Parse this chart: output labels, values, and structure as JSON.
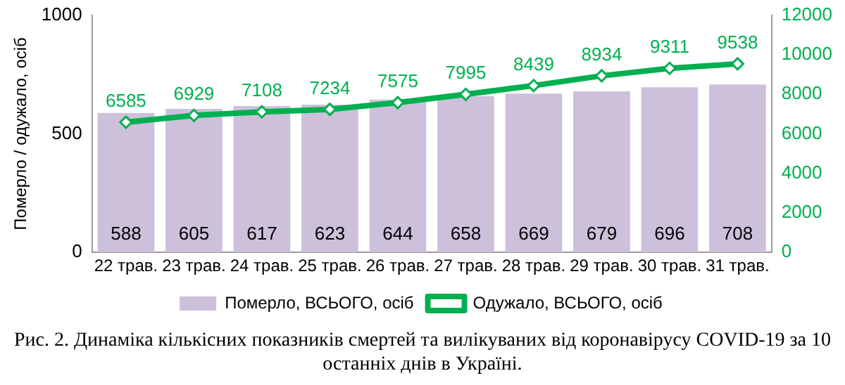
{
  "chart_data": {
    "type": "bar",
    "ylabel": "Померло / одужало, осіб",
    "categories": [
      "22 трав.",
      "23 трав.",
      "24 трав.",
      "25 трав.",
      "26 трав.",
      "27 трав.",
      "28 трав.",
      "29 трав.",
      "30 трав.",
      "31 трав."
    ],
    "series": [
      {
        "name": "Померло, ВСЬОГО, осіб",
        "color": "#ccc0da",
        "values": [
          588,
          605,
          617,
          623,
          644,
          658,
          669,
          679,
          696,
          708
        ]
      },
      {
        "name": "Одужало, ВСЬОГО, осіб",
        "type": "line",
        "axis": "y2",
        "color": "#00b050",
        "marker": "diamond",
        "values": [
          6585,
          6929,
          7108,
          7234,
          7575,
          7995,
          8439,
          8934,
          9311,
          9538
        ]
      }
    ],
    "ylim": [
      0,
      1000
    ],
    "yticks": [
      0,
      500,
      1000
    ],
    "y2lim": [
      0,
      12000
    ],
    "y2ticks": [
      0,
      2000,
      4000,
      6000,
      8000,
      10000,
      12000
    ],
    "data_labels": true,
    "grid": false,
    "legend": "bottom",
    "annotations": [
      "Рис. 2. Динаміка кількісних показників смертей та вилікуваних від коронавірусу COVID-19 за 10 останніх днів в Україні."
    ]
  }
}
